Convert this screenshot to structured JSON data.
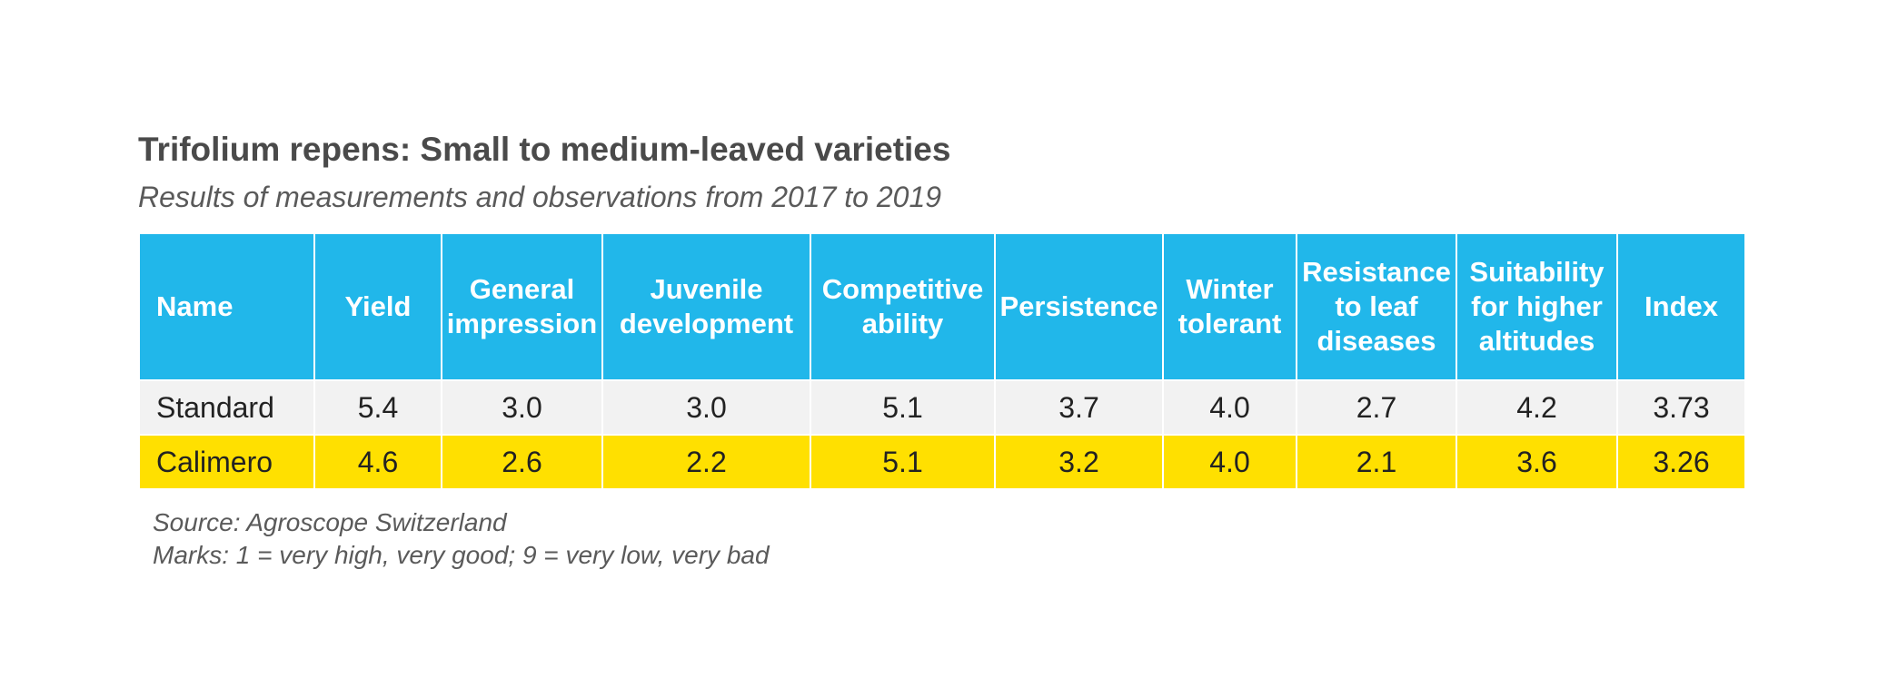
{
  "chart_data": {
    "type": "table",
    "title": "Trifolium repens: Small to medium-leaved varieties",
    "subtitle": "Results of measurements and observations from 2017 to 2019",
    "columns": [
      "Name",
      "Yield",
      "General impression",
      "Juvenile development",
      "Competitive ability",
      "Persistence",
      "Winter tolerant",
      "Resistance to leaf diseases",
      "Suitability for higher altitudes",
      "Index"
    ],
    "rows": [
      {
        "name": "Standard",
        "values": [
          "5.4",
          "3.0",
          "3.0",
          "5.1",
          "3.7",
          "4.0",
          "2.7",
          "4.2",
          "3.73"
        ],
        "color": "#f2f2f2"
      },
      {
        "name": "Calimero",
        "values": [
          "4.6",
          "2.6",
          "2.2",
          "5.1",
          "3.2",
          "4.0",
          "2.1",
          "3.6",
          "3.26"
        ],
        "color": "#ffe000"
      }
    ],
    "header_color": "#21b7ea",
    "source": "Source: Agroscope Switzerland",
    "note": "Marks: 1 = very high, very good; 9 = very low, very bad"
  }
}
